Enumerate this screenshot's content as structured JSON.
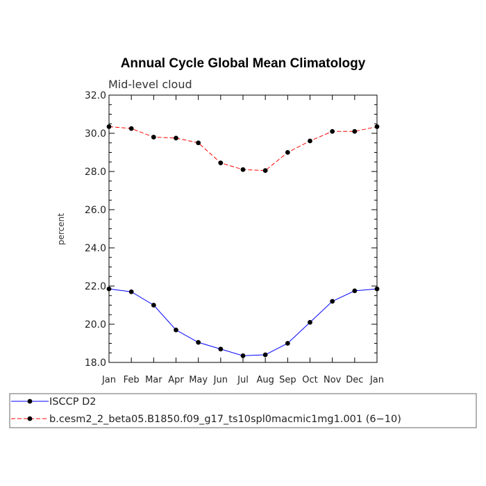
{
  "chart_data": {
    "type": "line",
    "title": "Annual Cycle Global Mean Climatology",
    "subtitle": "Mid-level cloud",
    "xlabel": "",
    "ylabel": "percent",
    "categories": [
      "Jan",
      "Feb",
      "Mar",
      "Apr",
      "May",
      "Jun",
      "Jul",
      "Aug",
      "Sep",
      "Oct",
      "Nov",
      "Dec",
      "Jan"
    ],
    "ylim": [
      18.0,
      32.0
    ],
    "yticks": [
      "18.0",
      "20.0",
      "22.0",
      "24.0",
      "26.0",
      "28.0",
      "30.0",
      "32.0"
    ],
    "grid": false,
    "legend_position": "bottom",
    "series": [
      {
        "name": "ISCCP D2",
        "color": "#0000ff",
        "style": "solid",
        "values": [
          21.85,
          21.7,
          21.0,
          19.7,
          19.05,
          18.7,
          18.35,
          18.4,
          19.0,
          20.1,
          21.2,
          21.75,
          21.85
        ]
      },
      {
        "name": "b.cesm2_2_beta05.B1850.f09_g17_ts10spl0macmic1mg1.001 (6−10)",
        "color": "#ff0000",
        "style": "dashed",
        "values": [
          30.35,
          30.25,
          29.8,
          29.75,
          29.5,
          28.45,
          28.1,
          28.05,
          29.0,
          29.6,
          30.1,
          30.1,
          30.35
        ]
      }
    ]
  }
}
